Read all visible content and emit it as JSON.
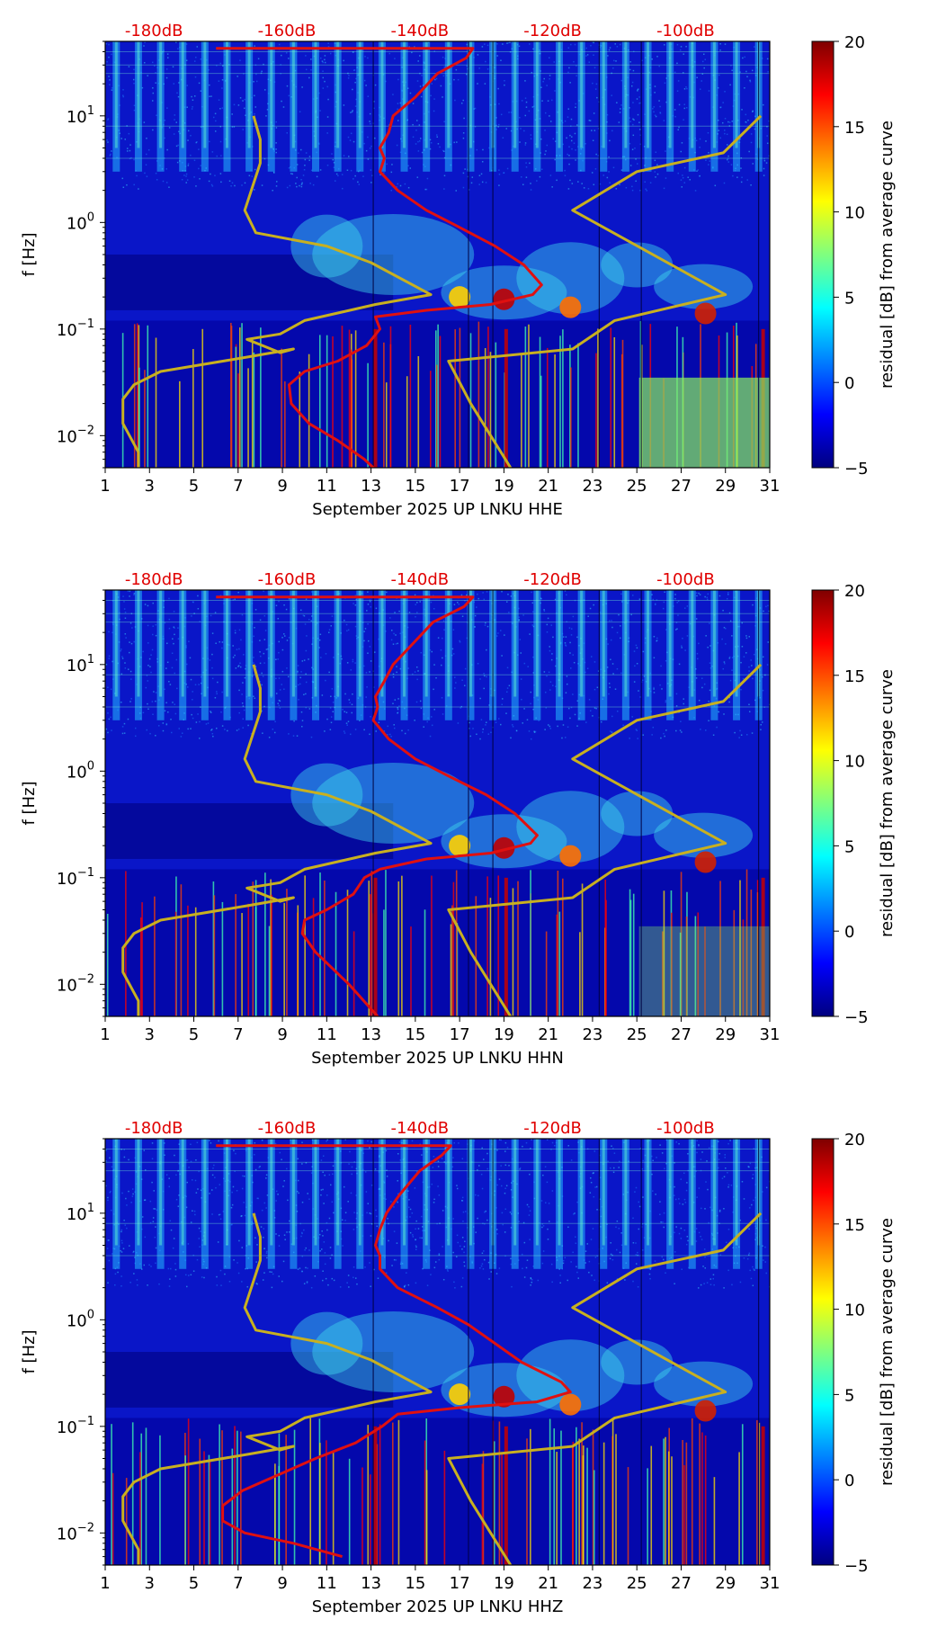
{
  "colors": {
    "red_curve": "#e01010",
    "yellow_curve": "#c8b020",
    "db_label": "#e00000",
    "colormap": [
      "#00007f",
      "#0000ff",
      "#007fff",
      "#00ffff",
      "#7fff7f",
      "#ffff00",
      "#ff7f00",
      "#ff0000",
      "#7f0000"
    ]
  },
  "chart_data": [
    {
      "type": "heatmap",
      "xlabel": "September 2025 UP LNKU  HHE",
      "ylabel": "f [Hz]",
      "x_ticks": [
        "1",
        "3",
        "5",
        "7",
        "9",
        "11",
        "13",
        "15",
        "17",
        "19",
        "21",
        "23",
        "25",
        "27",
        "29",
        "31"
      ],
      "xlim": [
        1,
        31
      ],
      "ylim": [
        0.005,
        50
      ],
      "y_scale": "log",
      "y_ticks": [
        "10^1",
        "10^0",
        "10^-1",
        "10^-2"
      ],
      "top_labels": [
        "-180dB",
        "-160dB",
        "-140dB",
        "-120dB",
        "-100dB"
      ],
      "colorbar": {
        "label": "residual [dB] from average curve",
        "ticks": [
          "20",
          "15",
          "10",
          "5",
          "0",
          "−5"
        ],
        "range": [
          -5,
          20
        ]
      },
      "series": [
        {
          "x": [
            6,
            12,
            13.3,
            15.6,
            17.6,
            17.3,
            16,
            15,
            14,
            13.8,
            13.4,
            13.6,
            13.4,
            14.2,
            15.5,
            17,
            18.6,
            19.9,
            20.7,
            20.3,
            18.4,
            15.5,
            13.2,
            13.4,
            12.8,
            11.5,
            10,
            9.3,
            9.4,
            10.2,
            11.5,
            12.7,
            13.1
          ],
          "y": [
            43,
            43,
            43,
            43,
            43,
            35,
            25,
            15,
            10,
            7,
            5,
            4,
            3,
            2,
            1.3,
            0.9,
            0.6,
            0.4,
            0.26,
            0.21,
            0.17,
            0.15,
            0.13,
            0.1,
            0.07,
            0.05,
            0.04,
            0.03,
            0.02,
            0.013,
            0.009,
            0.006,
            0.005
          ]
        },
        {
          "x": [
            7.7,
            8,
            8,
            7.3,
            7.8,
            11,
            13,
            15.7,
            13.2,
            10,
            8.9,
            7.4,
            8.9,
            9.5,
            7.5,
            5,
            3.5,
            2.3,
            1.8,
            1.8,
            2.5,
            2.5
          ],
          "y": [
            10,
            6,
            3.6,
            1.3,
            0.8,
            0.6,
            0.42,
            0.21,
            0.17,
            0.12,
            0.09,
            0.08,
            0.06,
            0.065,
            0.055,
            0.045,
            0.04,
            0.03,
            0.022,
            0.013,
            0.007,
            0.005
          ]
        },
        {
          "x": [
            30.6,
            28.9,
            25,
            22.1,
            29,
            24,
            22.1,
            16.5,
            17.5,
            19.3
          ],
          "y": [
            10,
            4.5,
            3,
            1.3,
            0.21,
            0.12,
            0.065,
            0.05,
            0.02,
            0.005
          ]
        }
      ]
    },
    {
      "type": "heatmap",
      "xlabel": "September 2025 UP LNKU  HHN",
      "ylabel": "f [Hz]",
      "x_ticks": [
        "1",
        "3",
        "5",
        "7",
        "9",
        "11",
        "13",
        "15",
        "17",
        "19",
        "21",
        "23",
        "25",
        "27",
        "29",
        "31"
      ],
      "xlim": [
        1,
        31
      ],
      "ylim": [
        0.005,
        50
      ],
      "y_scale": "log",
      "y_ticks": [
        "10^1",
        "10^0",
        "10^-1",
        "10^-2"
      ],
      "top_labels": [
        "-180dB",
        "-160dB",
        "-140dB",
        "-120dB",
        "-100dB"
      ],
      "colorbar": {
        "label": "residual [dB] from average curve",
        "ticks": [
          "20",
          "15",
          "10",
          "5",
          "0",
          "−5"
        ],
        "range": [
          -5,
          20
        ]
      },
      "series": [
        {
          "x": [
            6,
            12,
            13.3,
            15.6,
            17.6,
            17.2,
            15.8,
            14.8,
            14,
            13.6,
            13.2,
            13.3,
            13.1,
            13.8,
            15,
            16.5,
            18.2,
            19.5,
            20.5,
            20.2,
            18.4,
            15.5,
            13.4,
            12.7,
            12.2,
            11,
            10,
            9.9,
            10.5,
            12,
            13.3
          ],
          "y": [
            43,
            43,
            43,
            43,
            43,
            35,
            25,
            15,
            10,
            7,
            5,
            4,
            3,
            2,
            1.3,
            0.9,
            0.6,
            0.4,
            0.25,
            0.21,
            0.17,
            0.15,
            0.12,
            0.1,
            0.07,
            0.05,
            0.04,
            0.03,
            0.02,
            0.01,
            0.005
          ]
        },
        {
          "x": [
            7.7,
            8,
            8,
            7.3,
            7.8,
            11,
            13,
            15.7,
            13.2,
            10,
            8.9,
            7.4,
            8.9,
            9.5,
            7.5,
            5,
            3.5,
            2.3,
            1.8,
            1.8,
            2.5,
            2.5
          ],
          "y": [
            10,
            6,
            3.6,
            1.3,
            0.8,
            0.6,
            0.42,
            0.21,
            0.17,
            0.12,
            0.09,
            0.08,
            0.06,
            0.065,
            0.055,
            0.045,
            0.04,
            0.03,
            0.022,
            0.013,
            0.007,
            0.005
          ]
        },
        {
          "x": [
            30.6,
            28.9,
            25,
            22.1,
            29,
            24,
            22.1,
            16.5,
            17.5,
            19.3
          ],
          "y": [
            10,
            4.5,
            3,
            1.3,
            0.21,
            0.12,
            0.065,
            0.05,
            0.02,
            0.005
          ]
        }
      ]
    },
    {
      "type": "heatmap",
      "xlabel": "September 2025 UP LNKU  HHZ",
      "ylabel": "f [Hz]",
      "x_ticks": [
        "1",
        "3",
        "5",
        "7",
        "9",
        "11",
        "13",
        "15",
        "17",
        "19",
        "21",
        "23",
        "25",
        "27",
        "29",
        "31"
      ],
      "xlim": [
        1,
        31
      ],
      "ylim": [
        0.005,
        50
      ],
      "y_scale": "log",
      "y_ticks": [
        "10^1",
        "10^0",
        "10^-1",
        "10^-2"
      ],
      "top_labels": [
        "-180dB",
        "-160dB",
        "-140dB",
        "-120dB",
        "-100dB"
      ],
      "colorbar": {
        "label": "residual [dB] from average curve",
        "ticks": [
          "20",
          "15",
          "10",
          "5",
          "0",
          "−5"
        ],
        "range": [
          -5,
          20
        ]
      },
      "series": [
        {
          "x": [
            6,
            11,
            12.5,
            14.5,
            16.6,
            16.2,
            15.2,
            14.3,
            13.7,
            13.4,
            13.2,
            13.4,
            13.4,
            14.2,
            16,
            17.4,
            18.6,
            19.8,
            21.6,
            22,
            20.5,
            17,
            14.2,
            13.5,
            12.3,
            10.5,
            8.8,
            7.2,
            6.3,
            6.3,
            7.3,
            9.5,
            11.7
          ],
          "y": [
            43,
            43,
            43,
            43,
            43,
            35,
            25,
            15,
            10,
            7,
            5,
            4,
            3,
            2,
            1.3,
            0.9,
            0.6,
            0.4,
            0.26,
            0.21,
            0.17,
            0.15,
            0.13,
            0.1,
            0.07,
            0.05,
            0.035,
            0.025,
            0.018,
            0.013,
            0.01,
            0.008,
            0.006
          ]
        },
        {
          "x": [
            7.7,
            8,
            8,
            7.3,
            7.8,
            11,
            13,
            15.7,
            13.2,
            10,
            8.9,
            7.4,
            8.9,
            9.5,
            7.5,
            5,
            3.5,
            2.3,
            1.8,
            1.8,
            2.5,
            2.5
          ],
          "y": [
            10,
            6,
            3.6,
            1.3,
            0.8,
            0.6,
            0.42,
            0.21,
            0.17,
            0.12,
            0.09,
            0.08,
            0.06,
            0.065,
            0.055,
            0.045,
            0.04,
            0.03,
            0.022,
            0.013,
            0.007,
            0.005
          ]
        },
        {
          "x": [
            30.6,
            28.9,
            25,
            22.1,
            29,
            24,
            22.1,
            16.5,
            17.5,
            19.3
          ],
          "y": [
            10,
            4.5,
            3,
            1.3,
            0.21,
            0.12,
            0.065,
            0.05,
            0.02,
            0.005
          ]
        }
      ]
    }
  ]
}
